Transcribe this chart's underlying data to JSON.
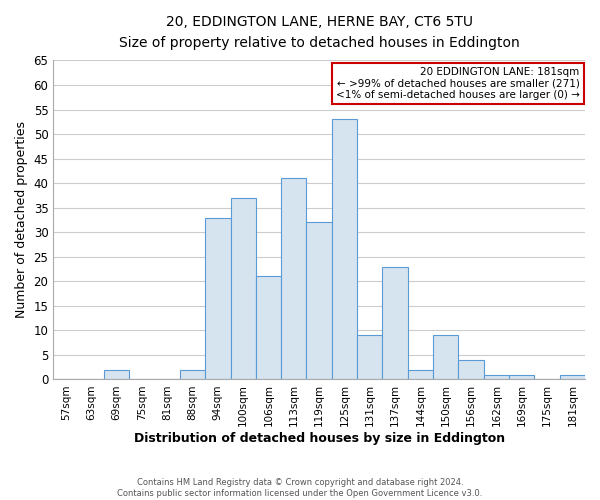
{
  "title": "20, EDDINGTON LANE, HERNE BAY, CT6 5TU",
  "subtitle": "Size of property relative to detached houses in Eddington",
  "xlabel": "Distribution of detached houses by size in Eddington",
  "ylabel": "Number of detached properties",
  "categories": [
    "57sqm",
    "63sqm",
    "69sqm",
    "75sqm",
    "81sqm",
    "88sqm",
    "94sqm",
    "100sqm",
    "106sqm",
    "113sqm",
    "119sqm",
    "125sqm",
    "131sqm",
    "137sqm",
    "144sqm",
    "150sqm",
    "156sqm",
    "162sqm",
    "169sqm",
    "175sqm",
    "181sqm"
  ],
  "values": [
    0,
    0,
    2,
    0,
    0,
    2,
    33,
    37,
    21,
    41,
    32,
    53,
    9,
    23,
    2,
    9,
    4,
    1,
    1,
    0,
    1
  ],
  "bar_color": "#d6e4f0",
  "bar_edge_color": "#5b9bd5",
  "ylim": [
    0,
    65
  ],
  "yticks": [
    0,
    5,
    10,
    15,
    20,
    25,
    30,
    35,
    40,
    45,
    50,
    55,
    60,
    65
  ],
  "annotation_title": "20 EDDINGTON LANE: 181sqm",
  "annotation_line1": "← >99% of detached houses are smaller (271)",
  "annotation_line2": "<1% of semi-detached houses are larger (0) →",
  "annotation_box_color": "#ffffff",
  "annotation_border_color": "#cc0000",
  "footer_line1": "Contains HM Land Registry data © Crown copyright and database right 2024.",
  "footer_line2": "Contains public sector information licensed under the Open Government Licence v3.0.",
  "background_color": "#ffffff",
  "grid_color": "#cccccc"
}
